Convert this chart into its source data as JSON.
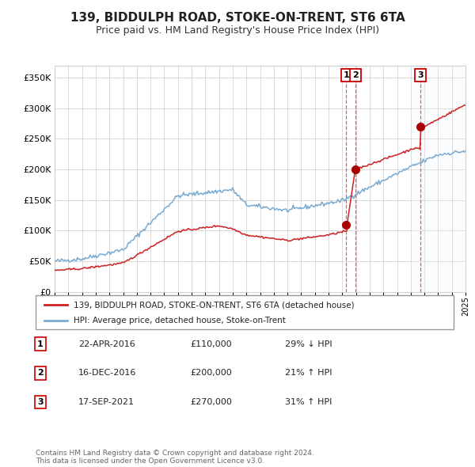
{
  "title": "139, BIDDULPH ROAD, STOKE-ON-TRENT, ST6 6TA",
  "subtitle": "Price paid vs. HM Land Registry's House Price Index (HPI)",
  "legend_line1": "139, BIDDULPH ROAD, STOKE-ON-TRENT, ST6 6TA (detached house)",
  "legend_line2": "HPI: Average price, detached house, Stoke-on-Trent",
  "transactions": [
    {
      "num": "1",
      "date": "22-APR-2016",
      "price": "£110,000",
      "hpi": "29% ↓ HPI",
      "year": 2016.3,
      "price_val": 110000
    },
    {
      "num": "2",
      "date": "16-DEC-2016",
      "price": "£200,000",
      "hpi": "21% ↑ HPI",
      "year": 2016.96,
      "price_val": 200000
    },
    {
      "num": "3",
      "date": "17-SEP-2021",
      "price": "£270,000",
      "hpi": "31% ↑ HPI",
      "year": 2021.71,
      "price_val": 270000
    }
  ],
  "hpi_color": "#7aaad0",
  "sale_color": "#cc2222",
  "marker_color": "#aa0000",
  "dashed_color": "#dd4444",
  "highlight_color": "#e8f0f8",
  "grid_color": "#cccccc",
  "bg_color": "#ffffff",
  "footer": "Contains HM Land Registry data © Crown copyright and database right 2024.\nThis data is licensed under the Open Government Licence v3.0.",
  "ylim": [
    0,
    370000
  ],
  "yticks": [
    0,
    50000,
    100000,
    150000,
    200000,
    250000,
    300000,
    350000
  ],
  "xlim_start": 1995,
  "xlim_end": 2025
}
